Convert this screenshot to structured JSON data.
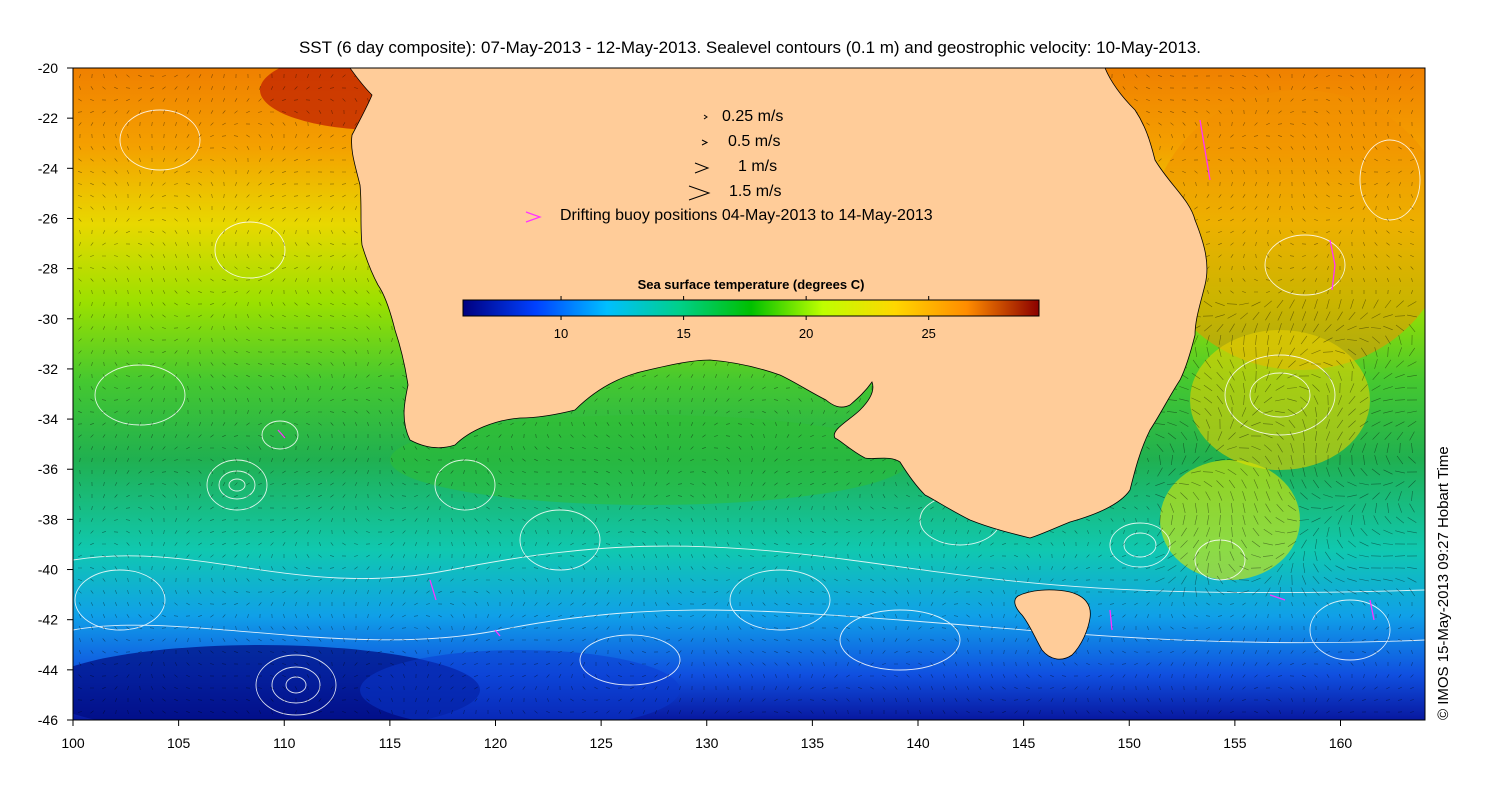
{
  "title": "SST (6 day composite): 07-May-2013 - 12-May-2013. Sealevel contours (0.1 m) and geostrophic velocity: 10-May-2013.",
  "credit": "© IMOS 15-May-2013 09:27 Hobart Time",
  "legend": {
    "speeds": [
      "0.25 m/s",
      "0.5 m/s",
      "1 m/s",
      "1.5 m/s"
    ],
    "buoy_label": "Drifting buoy positions 04-May-2013 to 14-May-2013",
    "buoy_color": "#ff33ff"
  },
  "colorbar": {
    "title": "Sea surface temperature (degrees C)",
    "range": [
      6,
      29.5
    ],
    "ticks": [
      "10",
      "15",
      "20",
      "25"
    ],
    "tick_values": [
      10,
      15,
      20,
      25
    ],
    "colors": [
      "#00007f",
      "#0040ff",
      "#00bfff",
      "#00d08a",
      "#00c000",
      "#bfff00",
      "#ffd700",
      "#ff8c00",
      "#8b0000"
    ]
  },
  "axes": {
    "x_ticks": [
      "100",
      "105",
      "110",
      "115",
      "120",
      "125",
      "130",
      "135",
      "140",
      "145",
      "150",
      "155",
      "160"
    ],
    "x_values": [
      100,
      105,
      110,
      115,
      120,
      125,
      130,
      135,
      140,
      145,
      150,
      155,
      160
    ],
    "y_ticks": [
      "-20",
      "-22",
      "-24",
      "-26",
      "-28",
      "-30",
      "-32",
      "-34",
      "-36",
      "-38",
      "-40",
      "-42",
      "-44",
      "-46"
    ],
    "y_values": [
      -20,
      -22,
      -24,
      -26,
      -28,
      -30,
      -32,
      -34,
      -36,
      -38,
      -40,
      -42,
      -44,
      -46
    ],
    "x_range": [
      100,
      164
    ],
    "y_range": [
      -46,
      -20
    ]
  },
  "colors": {
    "land": "#ffcc99",
    "contour": "#ffffff",
    "vector": "#000000"
  }
}
